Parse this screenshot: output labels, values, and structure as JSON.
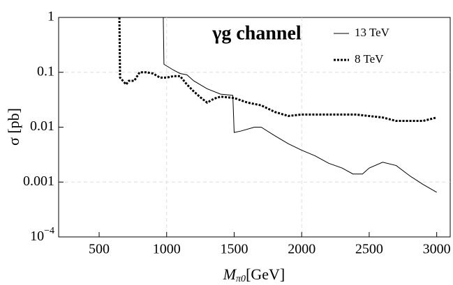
{
  "chart_data": {
    "type": "line",
    "annotation": "γg channel",
    "y_label": "σ [pb]",
    "x_label": {
      "main": "M",
      "sub": "π0",
      "unit": "[GeV]"
    },
    "xlim": [
      200,
      3100
    ],
    "ylim": [
      0.0001,
      1
    ],
    "log_y": true,
    "xticks": [
      500,
      1000,
      1500,
      2000,
      2500,
      3000
    ],
    "yticks": [
      1,
      0.1,
      0.01,
      0.001,
      {
        "value": 0.0001,
        "label": "10",
        "exponent": "−4"
      }
    ],
    "xgrid": [
      1000,
      2000
    ],
    "ygrid": [
      0.1,
      0.001
    ],
    "legend": "top-right",
    "series": [
      {
        "name": "13 TeV",
        "color": "#000000",
        "style": "solid",
        "x": [
          975,
          980,
          1050,
          1100,
          1150,
          1200,
          1300,
          1400,
          1490,
          1500,
          1550,
          1650,
          1700,
          1800,
          1900,
          2000,
          2100,
          2200,
          2300,
          2380,
          2450,
          2500,
          2600,
          2700,
          2800,
          2900,
          3000
        ],
        "values": [
          1,
          0.14,
          0.11,
          0.095,
          0.09,
          0.07,
          0.05,
          0.04,
          0.038,
          0.008,
          0.0085,
          0.01,
          0.01,
          0.007,
          0.005,
          0.0038,
          0.003,
          0.0022,
          0.0018,
          0.0014,
          0.0014,
          0.0018,
          0.0023,
          0.002,
          0.0013,
          0.0009,
          0.00065
        ]
      },
      {
        "name": "8 TeV",
        "color": "#000000",
        "style": "dotted",
        "x": [
          650,
          655,
          700,
          720,
          760,
          800,
          850,
          900,
          950,
          1000,
          1050,
          1100,
          1150,
          1200,
          1250,
          1300,
          1350,
          1400,
          1450,
          1500,
          1600,
          1700,
          1800,
          1900,
          2000,
          2200,
          2400,
          2600,
          2700,
          2800,
          2900,
          3000
        ],
        "values": [
          1,
          0.08,
          0.06,
          0.07,
          0.07,
          0.1,
          0.1,
          0.095,
          0.08,
          0.08,
          0.085,
          0.085,
          0.06,
          0.045,
          0.035,
          0.028,
          0.033,
          0.036,
          0.035,
          0.034,
          0.028,
          0.025,
          0.019,
          0.016,
          0.017,
          0.017,
          0.017,
          0.015,
          0.013,
          0.013,
          0.013,
          0.015
        ]
      }
    ]
  }
}
